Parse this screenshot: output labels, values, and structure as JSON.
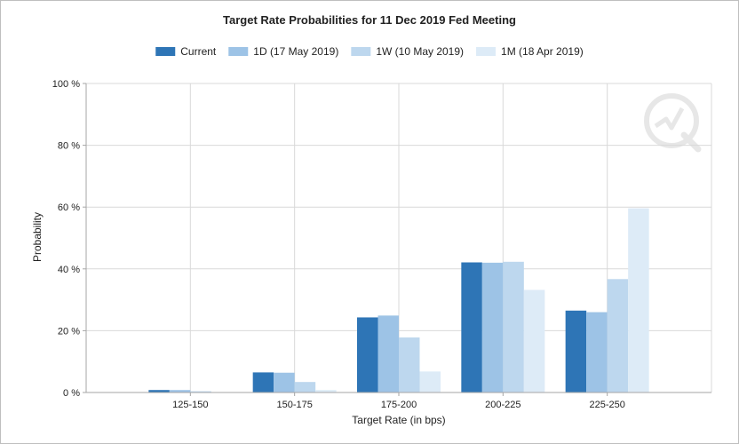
{
  "chart_data": {
    "type": "bar",
    "title": "Target Rate Probabilities for 11 Dec 2019 Fed Meeting",
    "xlabel": "Target Rate (in bps)",
    "ylabel": "Probability",
    "categories": [
      "125-150",
      "150-175",
      "175-200",
      "200-225",
      "225-250"
    ],
    "y_ticks": [
      "0 %",
      "20 %",
      "40 %",
      "60 %",
      "80 %",
      "100 %"
    ],
    "ylim": [
      0,
      100
    ],
    "grid": true,
    "legend_position": "top",
    "series": [
      {
        "name": "Current",
        "color": "#2e75b6",
        "values": [
          0.8,
          6.5,
          24.3,
          42.1,
          26.5
        ]
      },
      {
        "name": "1D (17 May 2019)",
        "color": "#9dc3e6",
        "values": [
          0.8,
          6.4,
          24.9,
          42.0,
          26.0
        ]
      },
      {
        "name": "1W (10 May 2019)",
        "color": "#bdd7ee",
        "values": [
          0.4,
          3.4,
          17.8,
          42.3,
          36.7
        ]
      },
      {
        "name": "1M (18 Apr 2019)",
        "color": "#ddebf7",
        "values": [
          0.0,
          0.8,
          6.8,
          33.2,
          59.6
        ]
      }
    ],
    "gridline_color": "#d9d9d9",
    "axis_color": "#a6a6a6"
  }
}
